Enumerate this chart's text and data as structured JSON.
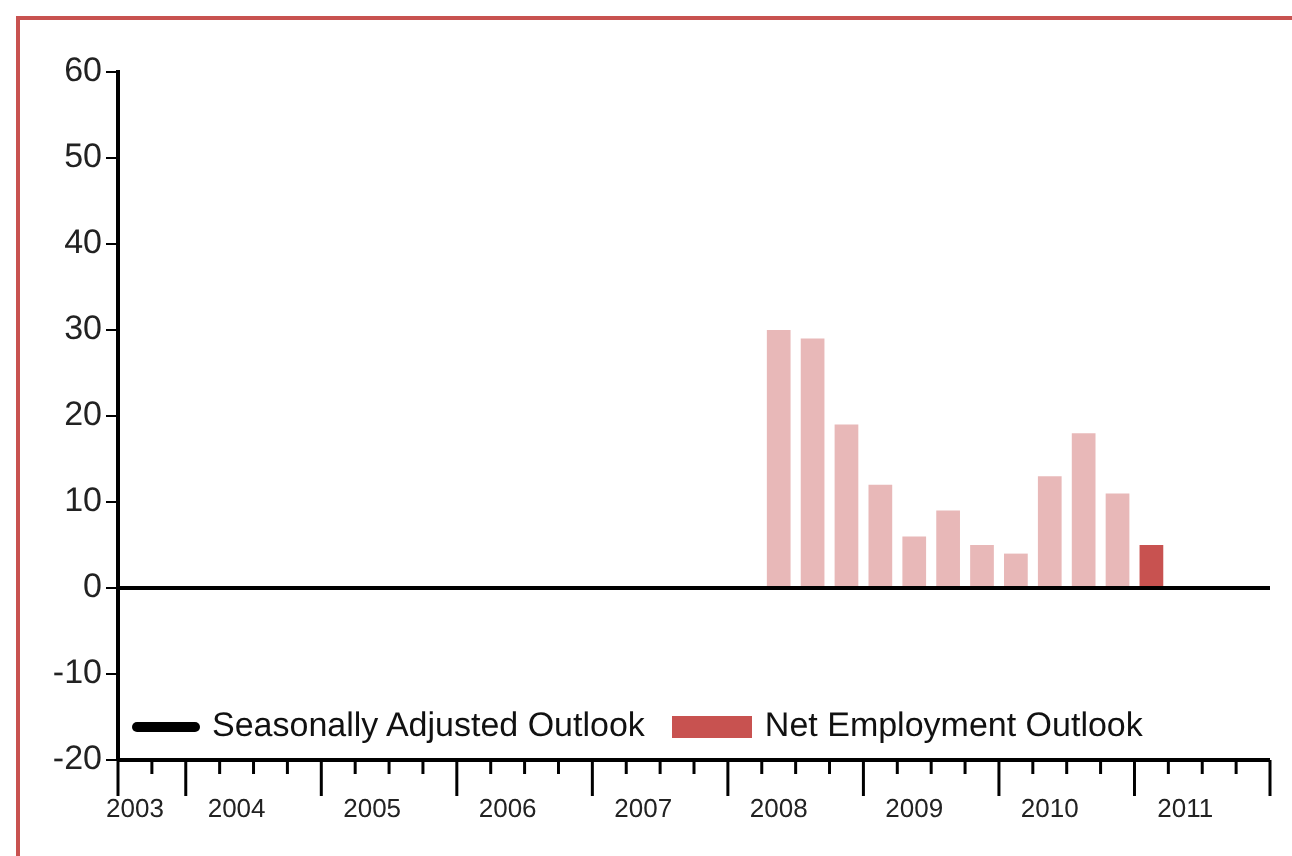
{
  "chart_data": {
    "type": "bar",
    "categories": [
      "2003",
      null,
      null,
      "2004",
      null,
      null,
      null,
      "2005",
      null,
      null,
      null,
      "2006",
      null,
      null,
      null,
      "2007",
      null,
      null,
      null,
      "2008",
      null,
      null,
      null,
      "2009",
      null,
      null,
      null,
      "2010",
      null,
      null,
      null,
      "2011",
      null,
      null
    ],
    "series": [
      {
        "name": "Seasonally Adjusted Outlook",
        "type": "line",
        "color": "#000000",
        "values": [
          null,
          null,
          null,
          null,
          null,
          null,
          null,
          null,
          null,
          null,
          null,
          null,
          null,
          null,
          null,
          null,
          null,
          null,
          null,
          null,
          null,
          null,
          null,
          null,
          null,
          null,
          null,
          null,
          null,
          null,
          null,
          null,
          null,
          null
        ]
      },
      {
        "name": "Net Employment Outlook",
        "color": "#c85250",
        "colors": [
          "#e8b8b8",
          "#e8b8b8",
          "#e8b8b8",
          "#e8b8b8",
          "#e8b8b8",
          "#e8b8b8",
          "#e8b8b8",
          "#e8b8b8",
          "#e8b8b8",
          "#e8b8b8",
          "#e8b8b8",
          "#e8b8b8",
          "#e8b8b8",
          "#e8b8b8",
          "#e8b8b8",
          "#e8b8b8",
          "#e8b8b8",
          "#e8b8b8",
          "#e8b8b8",
          "#e8b8b8",
          "#e8b8b8",
          "#e8b8b8",
          "#e8b8b8",
          "#e8b8b8",
          "#e8b8b8",
          "#e8b8b8",
          "#e8b8b8",
          "#e8b8b8",
          "#e8b8b8",
          "#e8b8b8",
          "#c85250",
          "#e8b8b8",
          "#e8b8b8",
          "#e8b8b8"
        ],
        "values": [
          null,
          null,
          null,
          null,
          null,
          null,
          null,
          null,
          null,
          null,
          null,
          null,
          null,
          null,
          null,
          null,
          null,
          null,
          null,
          30,
          29,
          19,
          12,
          6,
          9,
          5,
          4,
          13,
          18,
          11,
          5,
          null,
          null,
          null
        ]
      }
    ],
    "ylim": [
      -20,
      60
    ],
    "yticks": [
      -20,
      -10,
      0,
      10,
      20,
      30,
      40,
      50,
      60
    ],
    "ref_lines": [
      {
        "axis": "y",
        "value": 0,
        "color": "#000000"
      }
    ],
    "grid": false,
    "legend": "bottom"
  }
}
